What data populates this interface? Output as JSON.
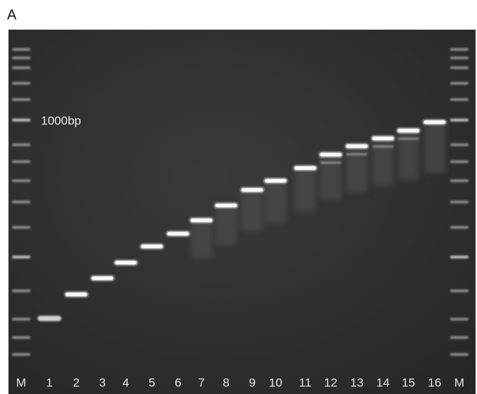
{
  "panel_label": "A",
  "marker_label": "1000bp",
  "lanes": [
    "M",
    "1",
    "2",
    "3",
    "4",
    "5",
    "6",
    "7",
    "8",
    "9",
    "10",
    "11",
    "12",
    "13",
    "14",
    "15",
    "16",
    "M"
  ]
}
